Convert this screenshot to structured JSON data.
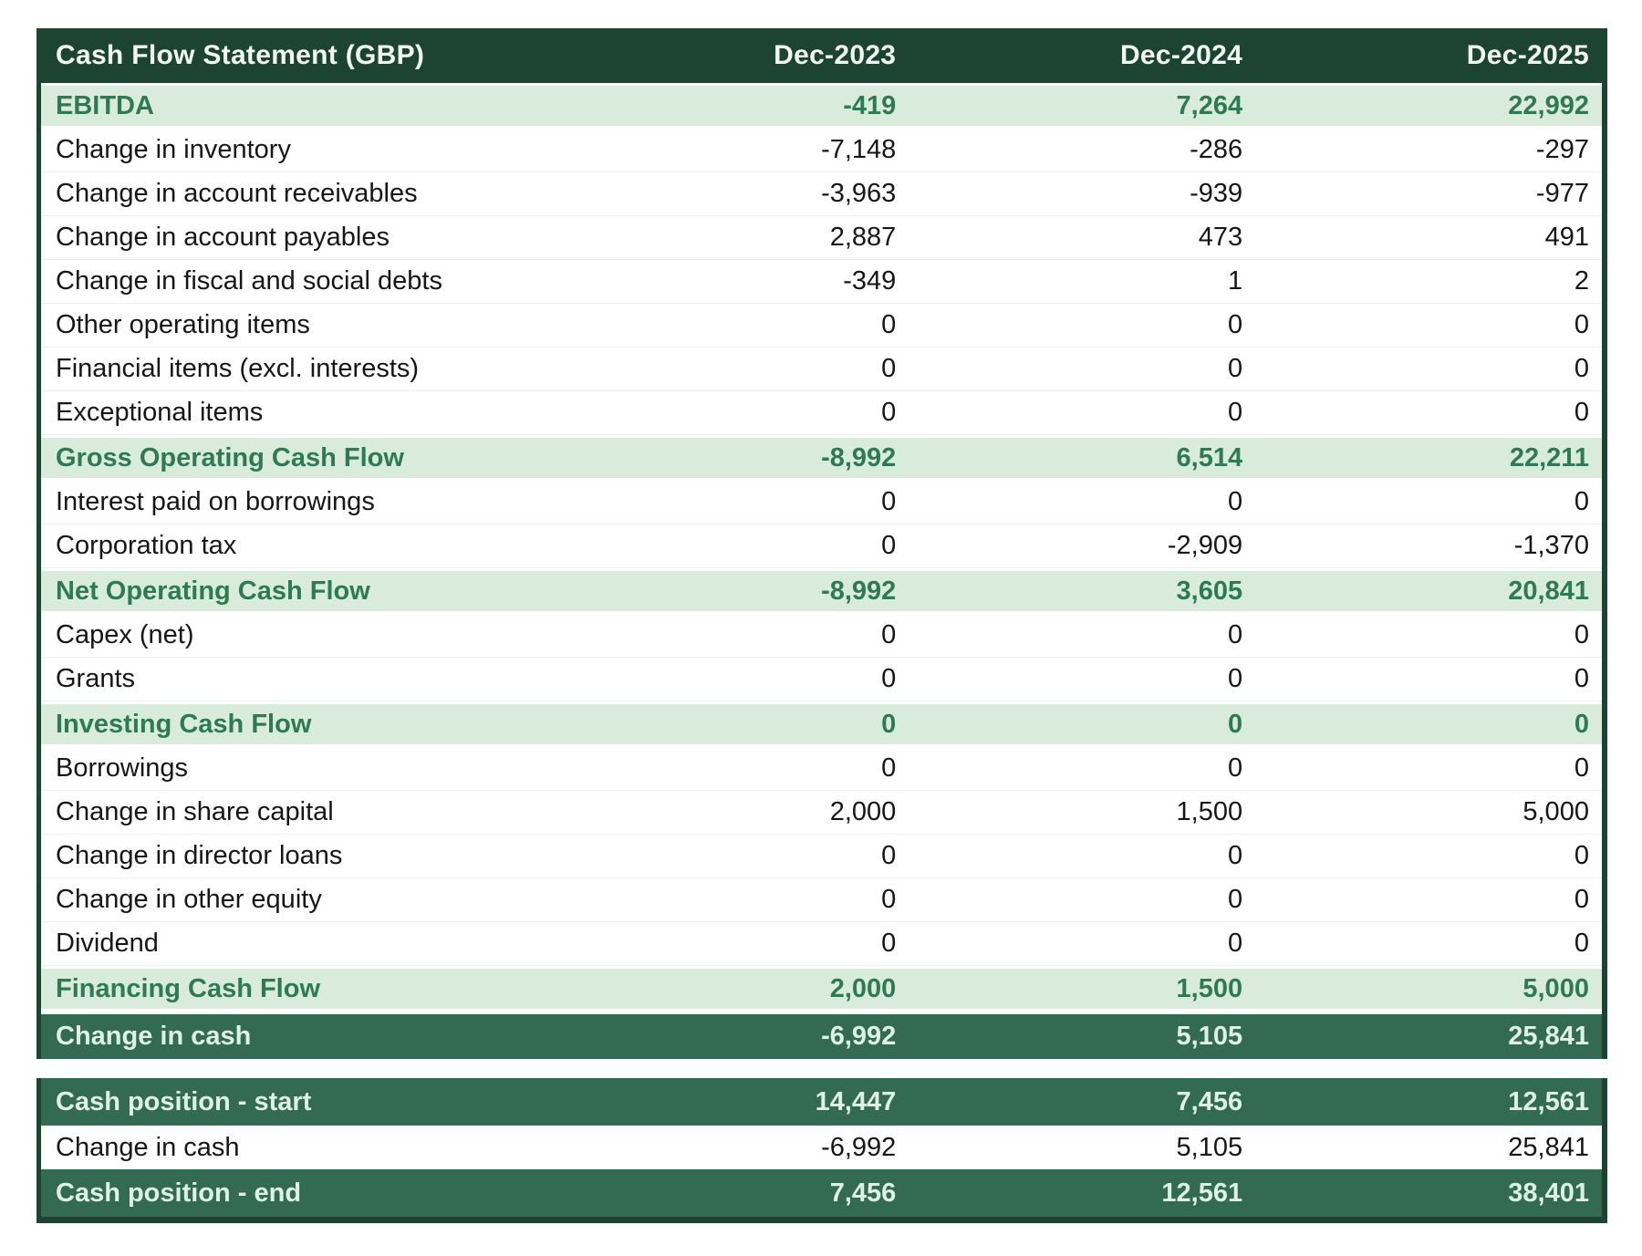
{
  "title": "Cash Flow Statement (GBP)",
  "columns": [
    "Dec-2023",
    "Dec-2024",
    "Dec-2025"
  ],
  "colors": {
    "header_bg": "#1d4433",
    "section_row_bg": "#d9ecdc",
    "section_row_text": "#2e7a52",
    "total_row_bg": "#336a52",
    "total_row_text": "#ddf1e4",
    "body_text": "#161616"
  },
  "main_rows": [
    {
      "label": "EBITDA",
      "style": "section",
      "values": [
        "-419",
        "7,264",
        "22,992"
      ]
    },
    {
      "label": "Change in inventory",
      "style": "normal",
      "values": [
        "-7,148",
        "-286",
        "-297"
      ]
    },
    {
      "label": "Change in account receivables",
      "style": "normal",
      "values": [
        "-3,963",
        "-939",
        "-977"
      ]
    },
    {
      "label": "Change in account payables",
      "style": "normal",
      "values": [
        "2,887",
        "473",
        "491"
      ]
    },
    {
      "label": "Change in fiscal and social debts",
      "style": "normal",
      "values": [
        "-349",
        "1",
        "2"
      ]
    },
    {
      "label": "Other operating items",
      "style": "normal",
      "values": [
        "0",
        "0",
        "0"
      ]
    },
    {
      "label": "Financial items (excl. interests)",
      "style": "normal",
      "values": [
        "0",
        "0",
        "0"
      ]
    },
    {
      "label": "Exceptional items",
      "style": "normal",
      "values": [
        "0",
        "0",
        "0"
      ]
    },
    {
      "label": "Gross Operating Cash Flow",
      "style": "section",
      "values": [
        "-8,992",
        "6,514",
        "22,211"
      ]
    },
    {
      "label": "Interest paid on borrowings",
      "style": "normal",
      "values": [
        "0",
        "0",
        "0"
      ]
    },
    {
      "label": "Corporation tax",
      "style": "normal",
      "values": [
        "0",
        "-2,909",
        "-1,370"
      ]
    },
    {
      "label": "Net Operating Cash Flow",
      "style": "section",
      "values": [
        "-8,992",
        "3,605",
        "20,841"
      ]
    },
    {
      "label": "Capex (net)",
      "style": "normal",
      "values": [
        "0",
        "0",
        "0"
      ]
    },
    {
      "label": "Grants",
      "style": "normal",
      "values": [
        "0",
        "0",
        "0"
      ]
    },
    {
      "label": "Investing Cash Flow",
      "style": "section",
      "values": [
        "0",
        "0",
        "0"
      ]
    },
    {
      "label": "Borrowings",
      "style": "normal",
      "values": [
        "0",
        "0",
        "0"
      ]
    },
    {
      "label": "Change in share capital",
      "style": "normal",
      "values": [
        "2,000",
        "1,500",
        "5,000"
      ]
    },
    {
      "label": "Change in director loans",
      "style": "normal",
      "values": [
        "0",
        "0",
        "0"
      ]
    },
    {
      "label": "Change in other equity",
      "style": "normal",
      "values": [
        "0",
        "0",
        "0"
      ]
    },
    {
      "label": "Dividend",
      "style": "normal",
      "values": [
        "0",
        "0",
        "0"
      ]
    },
    {
      "label": "Financing Cash Flow",
      "style": "section",
      "values": [
        "2,000",
        "1,500",
        "5,000"
      ]
    },
    {
      "label": "Change in cash",
      "style": "total",
      "values": [
        "-6,992",
        "5,105",
        "25,841"
      ]
    }
  ],
  "footer_rows": [
    {
      "label": "Cash position - start",
      "style": "total",
      "values": [
        "14,447",
        "7,456",
        "12,561"
      ]
    },
    {
      "label": "Change in cash",
      "style": "normal",
      "values": [
        "-6,992",
        "5,105",
        "25,841"
      ]
    },
    {
      "label": "Cash position - end",
      "style": "total",
      "values": [
        "7,456",
        "12,561",
        "38,401"
      ]
    }
  ]
}
